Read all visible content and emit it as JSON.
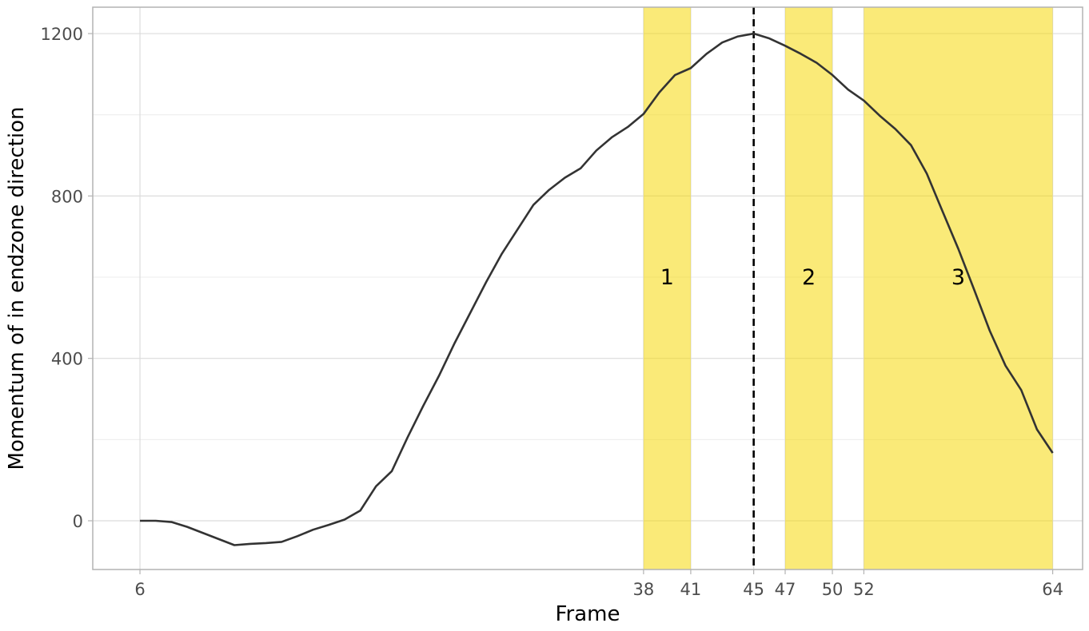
{
  "chart_data": {
    "type": "line",
    "title": "",
    "xlabel": "Frame",
    "ylabel": "Momentum of in endzone direction",
    "xlim": [
      3,
      65.9
    ],
    "ylim": [
      -120,
      1265
    ],
    "x_ticks": [
      6,
      38,
      41,
      45,
      47,
      50,
      52,
      64
    ],
    "y_ticks": [
      0,
      400,
      800,
      1200
    ],
    "y_minor_ticks": [
      200,
      600,
      1000
    ],
    "grid": true,
    "legend": "none",
    "line_color": "#333333",
    "region_color": "#f5d90a",
    "marker_color": "#000000",
    "event_line": {
      "x": 45,
      "style": "dashed"
    },
    "regions": [
      {
        "label": "1",
        "x_start": 38,
        "x_end": 41
      },
      {
        "label": "2",
        "x_start": 47,
        "x_end": 50
      },
      {
        "label": "3",
        "x_start": 52,
        "x_end": 64
      }
    ],
    "series": [
      {
        "x": [
          6,
          7,
          8,
          9,
          10,
          11,
          12,
          13,
          14,
          15,
          16,
          17,
          18,
          19,
          20,
          21,
          22,
          23,
          24,
          25,
          26,
          27,
          28,
          29,
          30,
          31,
          32,
          33,
          34,
          35,
          36,
          37,
          38,
          39,
          40,
          41,
          42,
          43,
          44,
          45,
          46,
          47,
          48,
          49,
          50,
          51,
          52,
          53,
          54,
          55,
          56,
          57,
          58,
          59,
          60,
          61,
          62,
          63,
          64
        ],
        "values": [
          0,
          0,
          -3,
          -15,
          -30,
          -45,
          -60,
          -57,
          -55,
          -52,
          -38,
          -22,
          -10,
          3,
          25,
          85,
          122,
          205,
          283,
          357,
          438,
          513,
          588,
          658,
          718,
          778,
          815,
          845,
          868,
          912,
          945,
          970,
          1002,
          1055,
          1098,
          1115,
          1150,
          1178,
          1193,
          1200,
          1188,
          1170,
          1150,
          1128,
          1098,
          1062,
          1035,
          998,
          965,
          925,
          855,
          762,
          670,
          570,
          468,
          382,
          322,
          225,
          167
        ]
      }
    ]
  }
}
